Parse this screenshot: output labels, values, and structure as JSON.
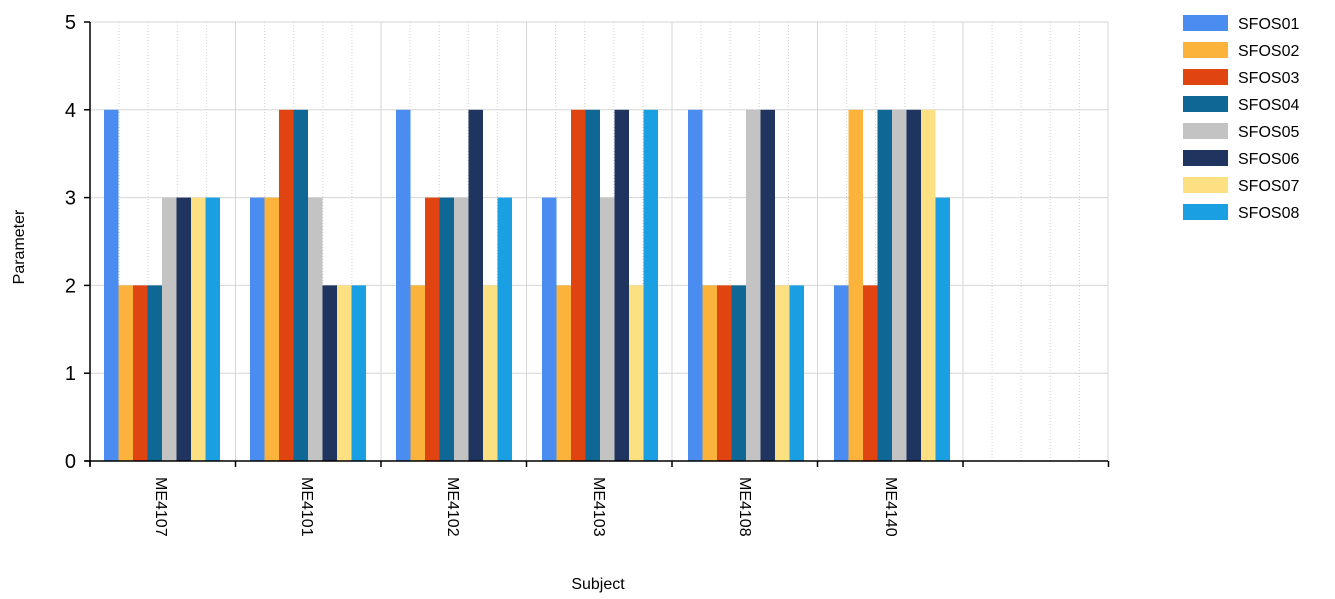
{
  "chart_data": {
    "type": "bar",
    "title": "",
    "xlabel": "Subject",
    "ylabel": "Parameter",
    "ylim": [
      0,
      5
    ],
    "yticks": [
      "0",
      "1",
      "2",
      "3",
      "4",
      "5"
    ],
    "grid": true,
    "legend_position": "top-right",
    "categories": [
      "ME4107",
      "ME4101",
      "ME4102",
      "ME4103",
      "ME4108",
      "ME4140"
    ],
    "series": [
      {
        "name": "SFOS01",
        "color": "#4a8cf0",
        "values": [
          4,
          3,
          4,
          3,
          4,
          2
        ]
      },
      {
        "name": "SFOS02",
        "color": "#fbb33c",
        "values": [
          2,
          3,
          2,
          2,
          2,
          4
        ]
      },
      {
        "name": "SFOS03",
        "color": "#e04411",
        "values": [
          2,
          4,
          3,
          4,
          2,
          2
        ]
      },
      {
        "name": "SFOS04",
        "color": "#0e6794",
        "values": [
          2,
          4,
          3,
          4,
          2,
          4
        ]
      },
      {
        "name": "SFOS05",
        "color": "#c3c3c3",
        "values": [
          3,
          3,
          3,
          3,
          4,
          4
        ]
      },
      {
        "name": "SFOS06",
        "color": "#1f3560",
        "values": [
          3,
          2,
          4,
          4,
          4,
          4
        ]
      },
      {
        "name": "SFOS07",
        "color": "#fde081",
        "values": [
          3,
          2,
          2,
          2,
          2,
          4
        ]
      },
      {
        "name": "SFOS08",
        "color": "#1aa0e2",
        "values": [
          3,
          2,
          3,
          4,
          2,
          3
        ]
      }
    ]
  }
}
